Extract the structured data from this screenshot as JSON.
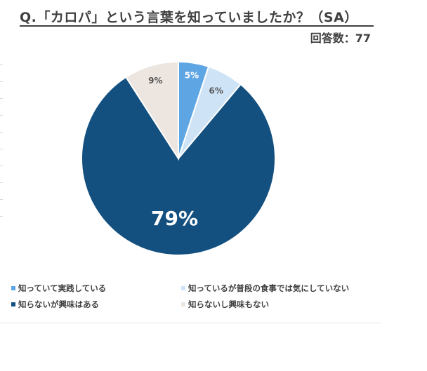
{
  "header": {
    "title": "Q.「カロパ」という言葉を知っていましたか？（SA）",
    "respondents": "回答数：77"
  },
  "chart_data": {
    "type": "pie",
    "title": "Q.「カロパ」という言葉を知っていましたか？（SA）",
    "categories": [
      "知っていて実践している",
      "知っているが普段の食事では気にしていない",
      "知らないが興味はある",
      "知らないし興味もない"
    ],
    "values": [
      5,
      6,
      79,
      9
    ],
    "labels": [
      "5%",
      "6%",
      "79%",
      "9%"
    ],
    "colors": [
      "#5ea5e4",
      "#cfe3f7",
      "#13507f",
      "#ede6e0"
    ],
    "label_colors": [
      "#ffffff",
      "#555555",
      "#ffffff",
      "#555555"
    ],
    "start_angle_deg": 0,
    "direction": "clockwise",
    "legend_position": "bottom"
  }
}
